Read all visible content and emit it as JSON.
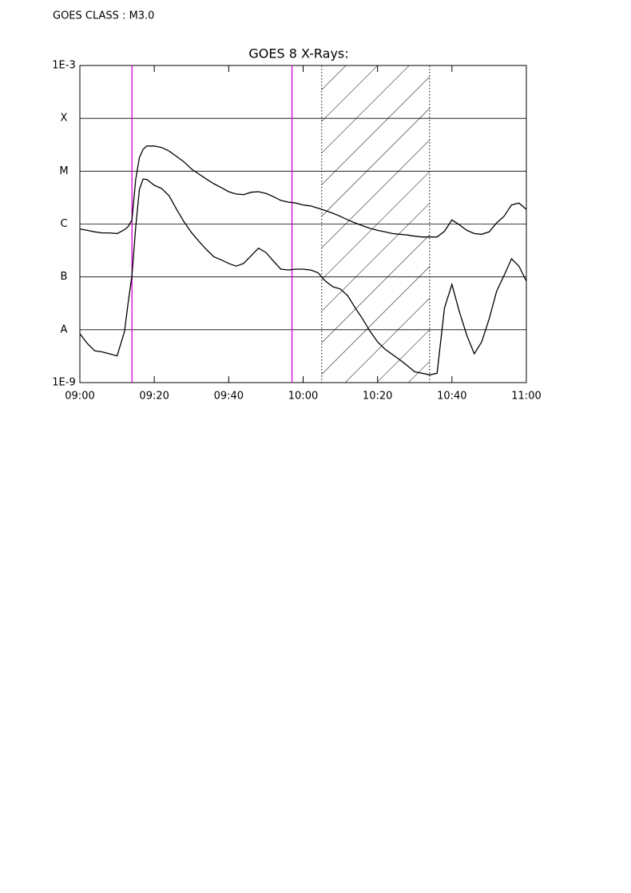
{
  "header": {
    "text": "GOES CLASS : M3.0"
  },
  "chart_data": {
    "type": "line",
    "title": "GOES 8 X-Rays:",
    "log_y": true,
    "grid": true,
    "xlim": [
      "09:00",
      "11:00"
    ],
    "xticks": [
      "09:00",
      "09:20",
      "09:40",
      "10:00",
      "10:20",
      "10:40",
      "11:00"
    ],
    "ylim": [
      1e-09,
      0.001
    ],
    "yticks": [
      {
        "value": 1e-09,
        "label": "1E-9"
      },
      {
        "value": 1e-08,
        "label": "A"
      },
      {
        "value": 1e-07,
        "label": "B"
      },
      {
        "value": 1e-06,
        "label": "C"
      },
      {
        "value": 1e-05,
        "label": "M"
      },
      {
        "value": 0.0001,
        "label": "X"
      },
      {
        "value": 0.001,
        "label": "1E-3"
      }
    ],
    "vlines": [
      {
        "x": "09:14",
        "color": "#cc00cc"
      },
      {
        "x": "09:57",
        "color": "#cc00cc"
      }
    ],
    "shaded": [
      "10:05",
      "10:34"
    ],
    "x": [
      "09:00",
      "09:02",
      "09:04",
      "09:06",
      "09:08",
      "09:10",
      "09:12",
      "09:13",
      "09:14",
      "09:15",
      "09:16",
      "09:17",
      "09:18",
      "09:20",
      "09:22",
      "09:24",
      "09:26",
      "09:28",
      "09:30",
      "09:32",
      "09:34",
      "09:36",
      "09:38",
      "09:40",
      "09:42",
      "09:44",
      "09:46",
      "09:48",
      "09:50",
      "09:52",
      "09:54",
      "09:56",
      "09:58",
      "10:00",
      "10:02",
      "10:04",
      "10:06",
      "10:08",
      "10:10",
      "10:12",
      "10:14",
      "10:16",
      "10:18",
      "10:20",
      "10:22",
      "10:24",
      "10:26",
      "10:28",
      "10:30",
      "10:32",
      "10:34",
      "10:36",
      "10:38",
      "10:40",
      "10:42",
      "10:44",
      "10:46",
      "10:48",
      "10:50",
      "10:52",
      "10:54",
      "10:56",
      "10:58",
      "11:00"
    ],
    "series": [
      {
        "color": "#000000",
        "values": [
          8.1e-07,
          7.6e-07,
          7.1e-07,
          6.8e-07,
          6.8e-07,
          6.6e-07,
          7.8e-07,
          9e-07,
          1.2e-06,
          7e-06,
          1.8e-05,
          2.6e-05,
          3e-05,
          3e-05,
          2.8e-05,
          2.4e-05,
          1.9e-05,
          1.5e-05,
          1.1e-05,
          8.8e-06,
          7.1e-06,
          5.8e-06,
          4.9e-06,
          4.1e-06,
          3.7e-06,
          3.6e-06,
          4e-06,
          4.1e-06,
          3.8e-06,
          3.3e-06,
          2.8e-06,
          2.6e-06,
          2.5e-06,
          2.3e-06,
          2.2e-06,
          2e-06,
          1.8e-06,
          1.6e-06,
          1.4e-06,
          1.2e-06,
          1.05e-06,
          9.3e-07,
          8.3e-07,
          7.6e-07,
          7.1e-07,
          6.6e-07,
          6.4e-07,
          6.2e-07,
          5.9e-07,
          5.7e-07,
          5.7e-07,
          5.7e-07,
          7.3e-07,
          1.2e-06,
          9.7e-07,
          7.6e-07,
          6.6e-07,
          6.4e-07,
          7.1e-07,
          1.05e-06,
          1.4e-06,
          2.3e-06,
          2.5e-06,
          1.9e-06
        ]
      },
      {
        "color": "#000000",
        "values": [
          8.4e-09,
          5.5e-09,
          4e-09,
          3.8e-09,
          3.5e-09,
          3.2e-09,
          9.3e-09,
          3.4e-08,
          1.06e-07,
          8.7e-07,
          4.5e-06,
          7.1e-06,
          7e-06,
          5.4e-06,
          4.7e-06,
          3.4e-06,
          1.9e-06,
          1.1e-06,
          6.9e-07,
          4.7e-07,
          3.3e-07,
          2.4e-07,
          2.1e-07,
          1.8e-07,
          1.6e-07,
          1.8e-07,
          2.5e-07,
          3.5e-07,
          2.9e-07,
          2e-07,
          1.4e-07,
          1.35e-07,
          1.4e-07,
          1.4e-07,
          1.35e-07,
          1.2e-07,
          8.3e-08,
          6.5e-08,
          5.9e-08,
          4.4e-08,
          2.6e-08,
          1.6e-08,
          9.3e-09,
          5.9e-09,
          4.3e-09,
          3.4e-09,
          2.7e-09,
          2.1e-09,
          1.6e-09,
          1.5e-09,
          1.4e-09,
          1.5e-09,
          2.6e-08,
          7.2e-08,
          2.2e-08,
          7.8e-09,
          3.5e-09,
          5.9e-09,
          1.6e-08,
          5.3e-08,
          1.06e-07,
          2.2e-07,
          1.6e-07,
          8.3e-08
        ]
      }
    ]
  }
}
